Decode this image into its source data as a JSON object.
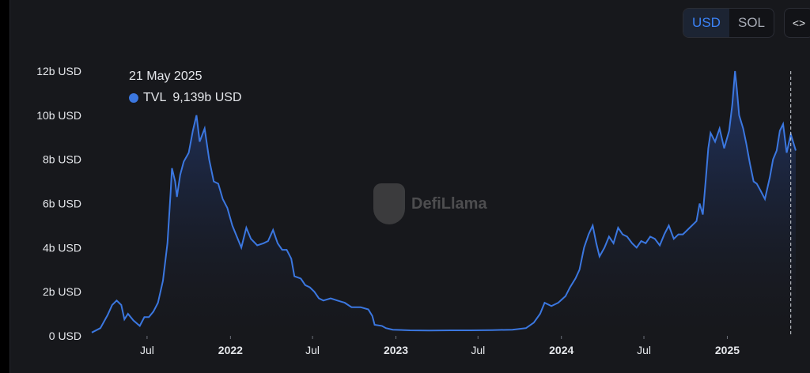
{
  "currency_toggle": {
    "usd_label": "USD",
    "sol_label": "SOL",
    "selected": "USD"
  },
  "embed_button": {
    "label": "<>",
    "icon": "code-icon"
  },
  "tooltip": {
    "date": "21 May 2025",
    "series_name": "TVL",
    "value": "9,139b USD",
    "color": "#3b77e0"
  },
  "watermark": {
    "text": "DefiLlama",
    "icon": "llama-logo-icon"
  },
  "colors": {
    "line": "#3b77e0",
    "background": "#17181c",
    "text": "#e5e7eb"
  },
  "chart_data": {
    "type": "area",
    "series": [
      {
        "name": "TVL",
        "unit": "b USD"
      }
    ],
    "y_ticks": [
      "0 USD",
      "2b USD",
      "4b USD",
      "6b USD",
      "8b USD",
      "10b USD",
      "12b USD"
    ],
    "ylim": [
      0,
      12
    ],
    "x_ticks": [
      "Jul",
      "2022",
      "Jul",
      "2023",
      "Jul",
      "2024",
      "Jul",
      "2025"
    ],
    "x_tick_bold": [
      false,
      true,
      false,
      true,
      false,
      true,
      false,
      true
    ],
    "x_tick_dates": [
      "2021-07-01",
      "2022-01-01",
      "2022-07-01",
      "2023-01-01",
      "2023-07-01",
      "2024-01-01",
      "2024-07-01",
      "2025-01-01"
    ],
    "xlim": [
      "2021-03-01",
      "2025-06-01"
    ],
    "grid": false,
    "crosshair_date": "2025-05-21",
    "points": [
      [
        "2021-03-01",
        0.15
      ],
      [
        "2021-03-20",
        0.35
      ],
      [
        "2021-04-05",
        0.95
      ],
      [
        "2021-04-15",
        1.4
      ],
      [
        "2021-04-25",
        1.6
      ],
      [
        "2021-05-05",
        1.4
      ],
      [
        "2021-05-12",
        0.75
      ],
      [
        "2021-05-20",
        1.0
      ],
      [
        "2021-06-01",
        0.7
      ],
      [
        "2021-06-15",
        0.45
      ],
      [
        "2021-06-25",
        0.85
      ],
      [
        "2021-07-05",
        0.85
      ],
      [
        "2021-07-15",
        1.1
      ],
      [
        "2021-07-25",
        1.5
      ],
      [
        "2021-08-05",
        2.5
      ],
      [
        "2021-08-15",
        4.2
      ],
      [
        "2021-08-22",
        6.5
      ],
      [
        "2021-08-25",
        7.6
      ],
      [
        "2021-09-01",
        7.0
      ],
      [
        "2021-09-05",
        6.3
      ],
      [
        "2021-09-12",
        7.3
      ],
      [
        "2021-09-20",
        7.9
      ],
      [
        "2021-10-01",
        8.3
      ],
      [
        "2021-10-10",
        9.3
      ],
      [
        "2021-10-18",
        10.0
      ],
      [
        "2021-10-25",
        8.8
      ],
      [
        "2021-11-05",
        9.4
      ],
      [
        "2021-11-15",
        8.0
      ],
      [
        "2021-11-25",
        7.0
      ],
      [
        "2021-12-05",
        6.9
      ],
      [
        "2021-12-15",
        6.2
      ],
      [
        "2021-12-25",
        5.8
      ],
      [
        "2022-01-05",
        5.0
      ],
      [
        "2022-01-15",
        4.5
      ],
      [
        "2022-01-25",
        4.0
      ],
      [
        "2022-02-05",
        4.9
      ],
      [
        "2022-02-15",
        4.4
      ],
      [
        "2022-03-01",
        4.1
      ],
      [
        "2022-03-15",
        4.2
      ],
      [
        "2022-03-25",
        4.3
      ],
      [
        "2022-04-05",
        4.8
      ],
      [
        "2022-04-15",
        4.2
      ],
      [
        "2022-04-25",
        3.9
      ],
      [
        "2022-05-05",
        3.9
      ],
      [
        "2022-05-15",
        3.5
      ],
      [
        "2022-05-22",
        2.7
      ],
      [
        "2022-06-05",
        2.6
      ],
      [
        "2022-06-15",
        2.3
      ],
      [
        "2022-06-25",
        2.2
      ],
      [
        "2022-07-05",
        2.0
      ],
      [
        "2022-07-15",
        1.7
      ],
      [
        "2022-07-25",
        1.6
      ],
      [
        "2022-08-10",
        1.7
      ],
      [
        "2022-08-25",
        1.6
      ],
      [
        "2022-09-10",
        1.5
      ],
      [
        "2022-09-25",
        1.3
      ],
      [
        "2022-10-15",
        1.3
      ],
      [
        "2022-11-01",
        1.2
      ],
      [
        "2022-11-10",
        0.9
      ],
      [
        "2022-11-15",
        0.5
      ],
      [
        "2022-12-01",
        0.45
      ],
      [
        "2022-12-10",
        0.35
      ],
      [
        "2022-12-25",
        0.28
      ],
      [
        "2023-02-01",
        0.25
      ],
      [
        "2023-03-15",
        0.24
      ],
      [
        "2023-05-01",
        0.25
      ],
      [
        "2023-06-15",
        0.25
      ],
      [
        "2023-08-01",
        0.26
      ],
      [
        "2023-09-15",
        0.28
      ],
      [
        "2023-10-15",
        0.35
      ],
      [
        "2023-11-01",
        0.6
      ],
      [
        "2023-11-15",
        1.0
      ],
      [
        "2023-11-25",
        1.5
      ],
      [
        "2023-12-10",
        1.35
      ],
      [
        "2023-12-25",
        1.5
      ],
      [
        "2024-01-10",
        1.8
      ],
      [
        "2024-01-20",
        2.2
      ],
      [
        "2024-02-01",
        2.6
      ],
      [
        "2024-02-10",
        3.0
      ],
      [
        "2024-02-20",
        4.0
      ],
      [
        "2024-03-01",
        4.6
      ],
      [
        "2024-03-10",
        5.0
      ],
      [
        "2024-03-18",
        4.2
      ],
      [
        "2024-03-25",
        3.6
      ],
      [
        "2024-04-05",
        4.0
      ],
      [
        "2024-04-15",
        4.5
      ],
      [
        "2024-04-25",
        4.2
      ],
      [
        "2024-05-05",
        4.9
      ],
      [
        "2024-05-15",
        4.6
      ],
      [
        "2024-05-25",
        4.5
      ],
      [
        "2024-06-05",
        4.2
      ],
      [
        "2024-06-15",
        4.0
      ],
      [
        "2024-06-25",
        4.3
      ],
      [
        "2024-07-05",
        4.2
      ],
      [
        "2024-07-15",
        4.5
      ],
      [
        "2024-07-25",
        4.4
      ],
      [
        "2024-08-05",
        4.1
      ],
      [
        "2024-08-15",
        4.6
      ],
      [
        "2024-08-25",
        5.0
      ],
      [
        "2024-09-05",
        4.4
      ],
      [
        "2024-09-15",
        4.6
      ],
      [
        "2024-09-25",
        4.6
      ],
      [
        "2024-10-05",
        4.8
      ],
      [
        "2024-10-15",
        5.0
      ],
      [
        "2024-10-25",
        5.2
      ],
      [
        "2024-11-01",
        6.0
      ],
      [
        "2024-11-08",
        5.5
      ],
      [
        "2024-11-15",
        7.2
      ],
      [
        "2024-11-20",
        8.5
      ],
      [
        "2024-11-25",
        9.2
      ],
      [
        "2024-12-05",
        8.8
      ],
      [
        "2024-12-15",
        9.4
      ],
      [
        "2024-12-25",
        8.5
      ],
      [
        "2025-01-05",
        9.3
      ],
      [
        "2025-01-12",
        10.5
      ],
      [
        "2025-01-18",
        12.0
      ],
      [
        "2025-01-22",
        11.2
      ],
      [
        "2025-01-27",
        10.0
      ],
      [
        "2025-02-05",
        9.4
      ],
      [
        "2025-02-12",
        8.7
      ],
      [
        "2025-02-20",
        7.8
      ],
      [
        "2025-02-28",
        7.0
      ],
      [
        "2025-03-07",
        6.9
      ],
      [
        "2025-03-15",
        6.6
      ],
      [
        "2025-03-25",
        6.2
      ],
      [
        "2025-04-05",
        7.2
      ],
      [
        "2025-04-12",
        8.0
      ],
      [
        "2025-04-20",
        8.4
      ],
      [
        "2025-04-27",
        9.3
      ],
      [
        "2025-05-04",
        9.6
      ],
      [
        "2025-05-12",
        8.3
      ],
      [
        "2025-05-21",
        9.14
      ],
      [
        "2025-05-26",
        8.8
      ],
      [
        "2025-06-01",
        8.4
      ]
    ]
  }
}
